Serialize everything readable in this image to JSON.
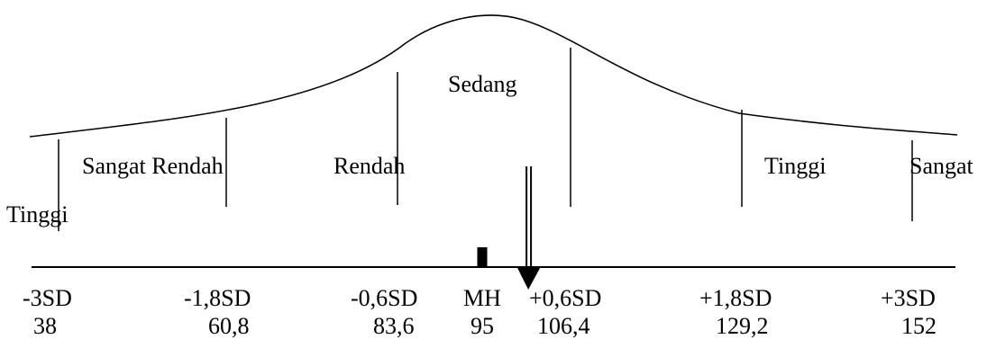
{
  "category_labels": {
    "very_low": "Sangat Rendah",
    "low": "Rendah",
    "medium": "Sedang",
    "high": "Tinggi",
    "very_high_part1": "Sangat",
    "very_high_part2": "Tinggi"
  },
  "scale": {
    "sd_labels": [
      "-3SD",
      "-1,8SD",
      "-0,6SD",
      "MH",
      "+0,6SD",
      "+1,8SD",
      "+3SD"
    ],
    "values": [
      "38",
      "60,8",
      "83,6",
      "95",
      "106,4",
      "129,2",
      "152"
    ]
  },
  "markers": {
    "mean_value": 95,
    "arrow_value": 101
  }
}
